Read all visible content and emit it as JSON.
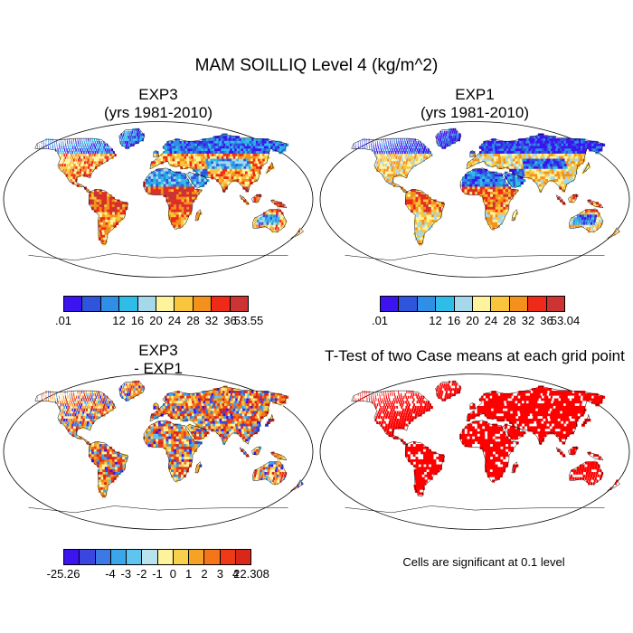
{
  "title": "MAM SOILLIQ Level 4 (kg/m^2)",
  "panels": {
    "exp3": {
      "line1": "EXP3",
      "line2": "(yrs 1981-2010)"
    },
    "exp1": {
      "line1": "EXP1",
      "line2": "(yrs 1981-2010)"
    },
    "diff": {
      "line1": "EXP3",
      "line2": "- EXP1"
    },
    "ttest": {
      "line1": "T-Test of two Case means at each grid point"
    }
  },
  "colorbars": {
    "exp3": {
      "colors": [
        "#3b14f0",
        "#2f55dc",
        "#2f8ee6",
        "#2fbde8",
        "#a6d8ec",
        "#fcf39c",
        "#f8c53c",
        "#f3911c",
        "#f02a18",
        "#cc3333"
      ],
      "labels": [
        ".01",
        "12",
        "16",
        "20",
        "24",
        "28",
        "32",
        "36",
        "53.55"
      ]
    },
    "exp1": {
      "colors": [
        "#3b14f0",
        "#2f55dc",
        "#2f8ee6",
        "#2fbde8",
        "#a6d8ec",
        "#fcf39c",
        "#f8c53c",
        "#f3911c",
        "#f02a18",
        "#cc3333"
      ],
      "labels": [
        ".01",
        "12",
        "16",
        "20",
        "24",
        "28",
        "32",
        "36",
        "53.04"
      ]
    },
    "diff": {
      "colors": [
        "#3b14f0",
        "#3b45e0",
        "#3b7ae4",
        "#3aa6ec",
        "#5fc4ee",
        "#b8e2ee",
        "#fcf39c",
        "#f8d04c",
        "#f6a224",
        "#f3761a",
        "#ef3a18",
        "#d8281a"
      ],
      "labels": [
        "-25.26",
        "-4",
        "-3",
        "-2",
        "-1",
        "0",
        "1",
        "2",
        "3",
        "4",
        "22.308"
      ]
    }
  },
  "significance_note": "Cells are significant at 0.1 level"
}
